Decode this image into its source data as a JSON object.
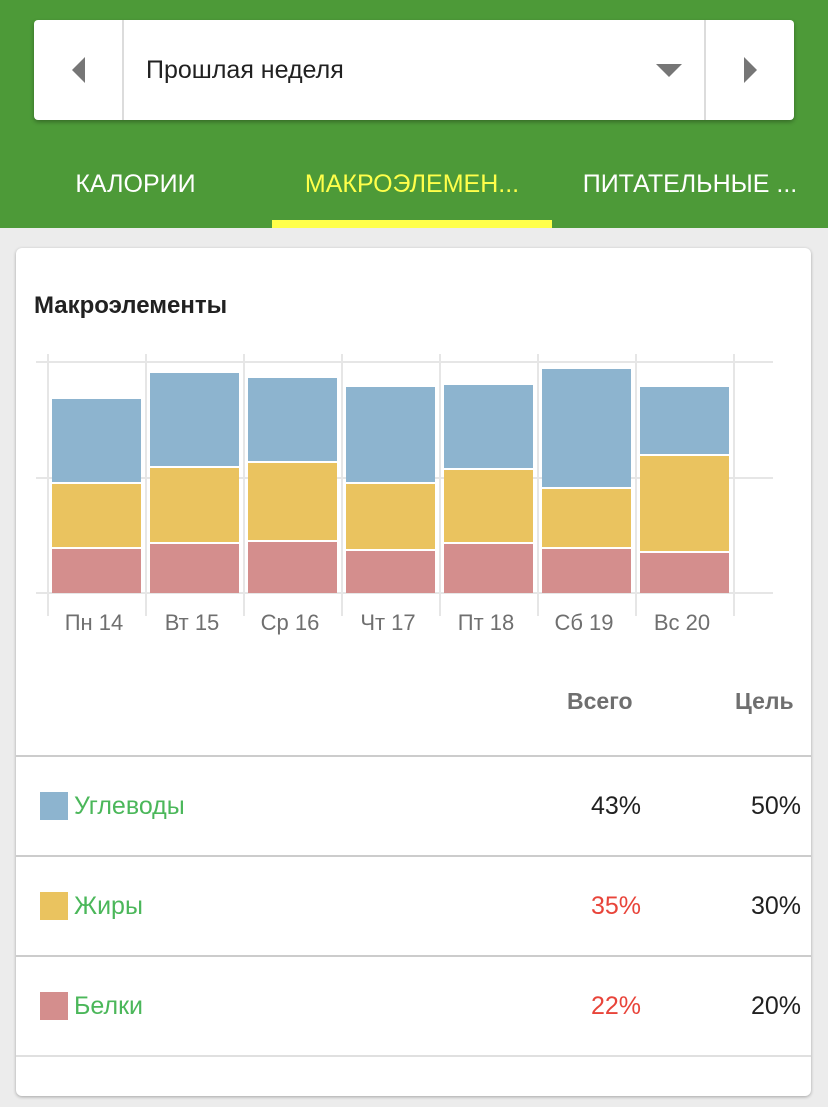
{
  "period": {
    "label": "Прошлая неделя",
    "prev_icon": "triangle-left-icon",
    "next_icon": "triangle-right-icon",
    "dropdown_icon": "triangle-down-icon"
  },
  "tabs": [
    {
      "label": "КАЛОРИИ",
      "active": false
    },
    {
      "label": "МАКРОЭЛЕМЕН...",
      "active": true
    },
    {
      "label": "ПИТАТЕЛЬНЫЕ ...",
      "active": false
    }
  ],
  "colors": {
    "header_green": "#4d9a38",
    "active_tab": "#ffff4a",
    "carbs": "#8db4cf",
    "fat": "#eac35f",
    "protein": "#d48e8d",
    "label_green": "#4bb75a",
    "over_red": "#e8443a"
  },
  "card": {
    "title": "Макроэлементы"
  },
  "chart_data": {
    "type": "bar",
    "stacked": true,
    "title": "Макроэлементы",
    "xlabel": "",
    "ylabel": "",
    "ylim": [
      0,
      100
    ],
    "grid": true,
    "y_tick_labels_shown": false,
    "note": "Values are relative bar heights (top gridline = 100); no y-axis labels are shown",
    "categories": [
      "Пн 14",
      "Вт 15",
      "Ср 16",
      "Чт 17",
      "Пт 18",
      "Сб 19",
      "Вс 20"
    ],
    "series": [
      {
        "name": "Белки",
        "color": "#d48e8d",
        "values": [
          20,
          22,
          23,
          19,
          22,
          20,
          18
        ]
      },
      {
        "name": "Жиры",
        "color": "#eac35f",
        "values": [
          28,
          33,
          34,
          29,
          32,
          26,
          42
        ]
      },
      {
        "name": "Углеводы",
        "color": "#8db4cf",
        "values": [
          37,
          41,
          37,
          42,
          37,
          52,
          30
        ]
      }
    ]
  },
  "table": {
    "headers": {
      "total": "Всего",
      "goal": "Цель"
    },
    "rows": [
      {
        "name": "Углеводы",
        "color": "#8db4cf",
        "total": "43%",
        "goal": "50%",
        "over": false
      },
      {
        "name": "Жиры",
        "color": "#eac35f",
        "total": "35%",
        "goal": "30%",
        "over": true
      },
      {
        "name": "Белки",
        "color": "#d48e8d",
        "total": "22%",
        "goal": "20%",
        "over": true
      }
    ]
  }
}
